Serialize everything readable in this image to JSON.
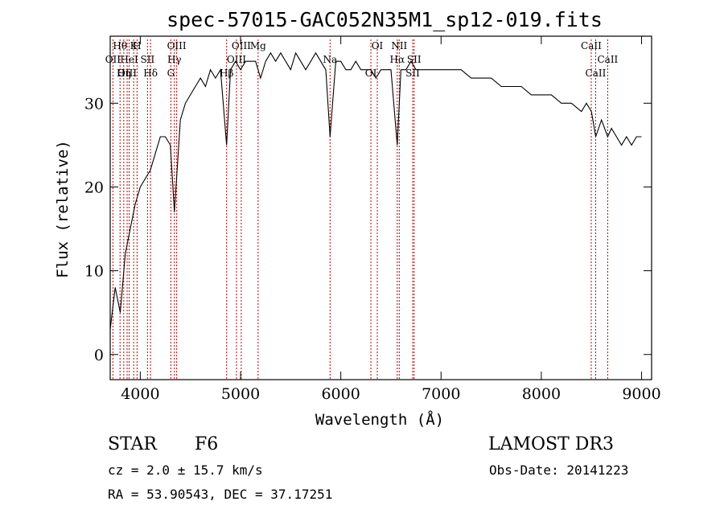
{
  "chart_data": {
    "type": "line",
    "title": "spec-57015-GAC052N35M1_sp12-019.fits",
    "xlabel": "Wavelength (Å)",
    "ylabel": "Flux (relative)",
    "xlim": [
      3700,
      9100
    ],
    "ylim": [
      -3,
      38
    ],
    "x_ticks": [
      4000,
      5000,
      6000,
      7000,
      8000,
      9000
    ],
    "y_ticks": [
      0,
      10,
      20,
      30
    ],
    "x_tick_labels": [
      "4000",
      "5000",
      "6000",
      "7000",
      "8000",
      "9000"
    ],
    "y_tick_labels": [
      "0",
      "10",
      "20",
      "30"
    ],
    "series": [
      {
        "name": "flux",
        "x": [
          3700,
          3750,
          3800,
          3850,
          3900,
          3950,
          4000,
          4050,
          4100,
          4150,
          4200,
          4250,
          4300,
          4340,
          4400,
          4450,
          4500,
          4550,
          4600,
          4650,
          4700,
          4750,
          4800,
          4861,
          4900,
          4950,
          5000,
          5050,
          5100,
          5150,
          5200,
          5250,
          5300,
          5350,
          5400,
          5450,
          5500,
          5550,
          5600,
          5650,
          5700,
          5750,
          5800,
          5850,
          5893,
          5950,
          6000,
          6050,
          6100,
          6150,
          6200,
          6250,
          6300,
          6350,
          6400,
          6450,
          6500,
          6563,
          6600,
          6650,
          6700,
          6750,
          6800,
          6850,
          6900,
          6950,
          7000,
          7100,
          7200,
          7300,
          7400,
          7500,
          7600,
          7700,
          7800,
          7900,
          8000,
          8100,
          8200,
          8300,
          8400,
          8450,
          8500,
          8542,
          8600,
          8662,
          8700,
          8750,
          8800,
          8850,
          8900,
          8950,
          9000
        ],
        "y": [
          3,
          8,
          5,
          12,
          15,
          18,
          20,
          21,
          22,
          24,
          26,
          26,
          25,
          17,
          28,
          30,
          31,
          32,
          33,
          32,
          34,
          33,
          34,
          25,
          34,
          35,
          34,
          35,
          35,
          35,
          33,
          35,
          36,
          35,
          36,
          35,
          34,
          36,
          35,
          34,
          35,
          36,
          35,
          34,
          26,
          35,
          35,
          34,
          34,
          35,
          34,
          34,
          34,
          33,
          34,
          34,
          34,
          25,
          34,
          34,
          35,
          34,
          34,
          34,
          34,
          34,
          34,
          34,
          34,
          33,
          33,
          33,
          32,
          32,
          32,
          31,
          31,
          31,
          30,
          30,
          29,
          30,
          29,
          26,
          28,
          26,
          27,
          26,
          25,
          26,
          25,
          26,
          26
        ]
      }
    ],
    "spectral_lines": [
      {
        "label": "Hθ",
        "x": 3798
      },
      {
        "label": "OII",
        "x": 3727
      },
      {
        "label": "OIII",
        "x": 3869
      },
      {
        "label": "K",
        "x": 3934
      },
      {
        "label": "HeI",
        "x": 3889
      },
      {
        "label": "Hη",
        "x": 3835
      },
      {
        "label": "H",
        "x": 3968
      },
      {
        "label": "SII",
        "x": 4072
      },
      {
        "label": "Hδ",
        "x": 4102
      },
      {
        "label": "OIII",
        "x": 4363
      },
      {
        "label": "Hγ",
        "x": 4340
      },
      {
        "label": "G",
        "x": 4305
      },
      {
        "label": "OIII",
        "x": 5007
      },
      {
        "label": "OIII",
        "x": 4959
      },
      {
        "label": "Hβ",
        "x": 4861
      },
      {
        "label": "Mg",
        "x": 5175
      },
      {
        "label": "Na",
        "x": 5893
      },
      {
        "label": "OI",
        "x": 6300
      },
      {
        "label": "OI",
        "x": 6364
      },
      {
        "label": "Hα",
        "x": 6563
      },
      {
        "label": "SII",
        "x": 6717
      },
      {
        "label": "NII",
        "x": 6583
      },
      {
        "label": "SII",
        "x": 6731
      },
      {
        "label": "CaII",
        "x": 8542
      },
      {
        "label": "CaII",
        "x": 8498
      },
      {
        "label": "CaII",
        "x": 8662
      }
    ],
    "legend": "none"
  },
  "footer": {
    "class_label": "STAR",
    "subclass": "F6",
    "survey": "LAMOST DR3",
    "cz": "cz = 2.0 ± 15.7 km/s",
    "obs_date": "Obs-Date: 20141223",
    "radec": "RA =  53.90543, DEC =  37.17251"
  },
  "colors": {
    "spectrum": "#000000",
    "line_markers": "#c00000",
    "axes": "#000000"
  }
}
